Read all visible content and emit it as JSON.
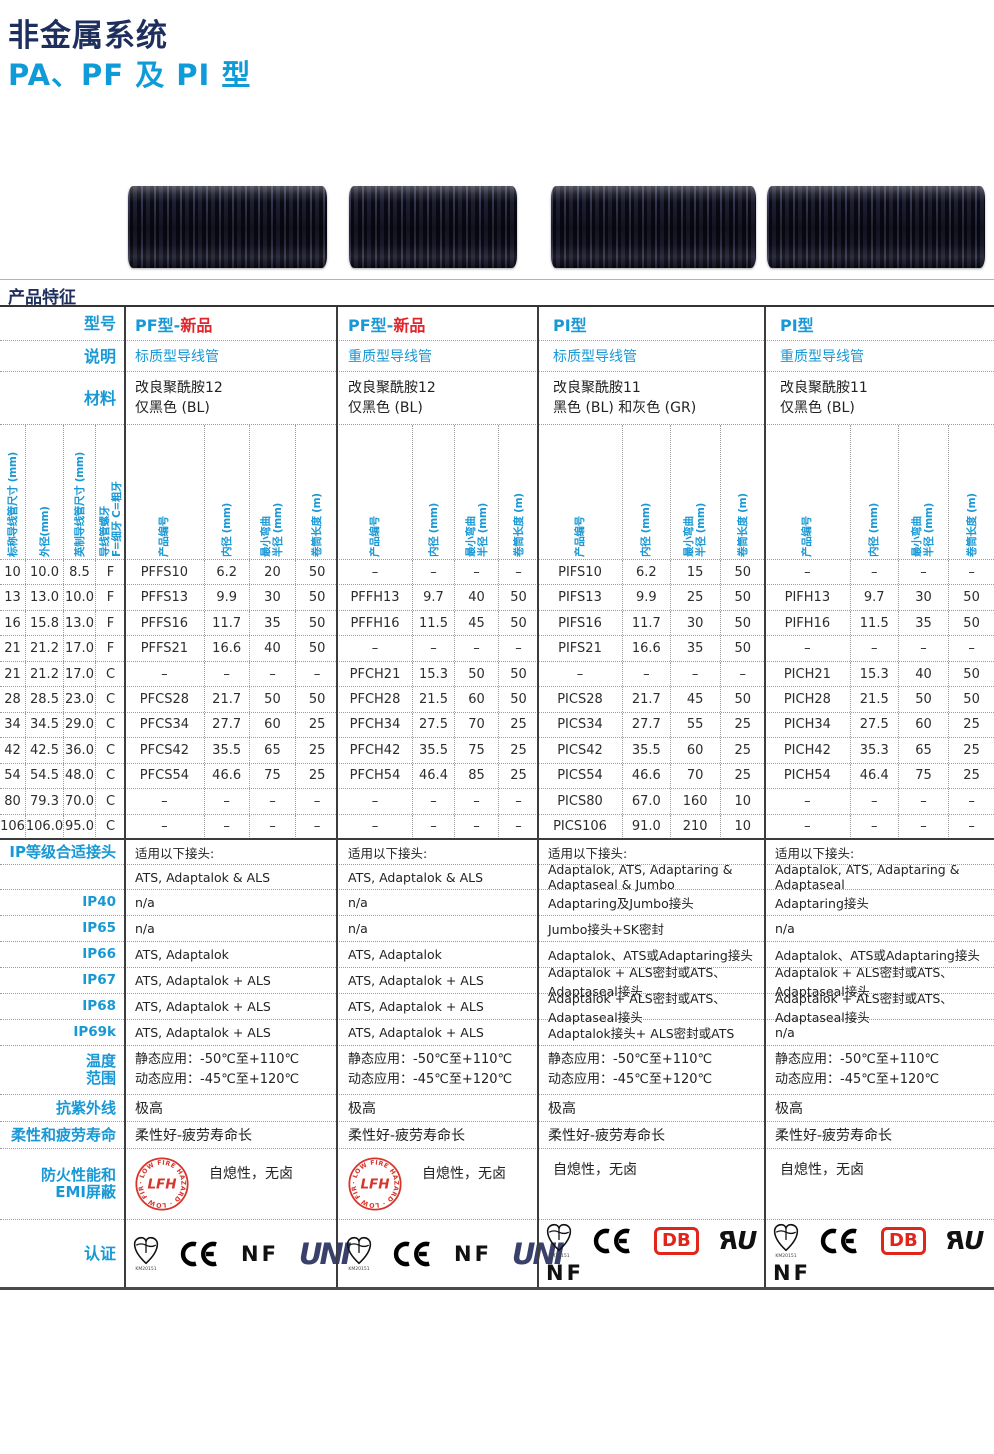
{
  "page": {
    "title": "非金属系统",
    "subtitle": "PA、PF 及 PI 型",
    "section_title": "产品特征"
  },
  "colors": {
    "title_navy": "#1e2f5e",
    "accent_blue": "#1898d5",
    "accent_red": "#e0262c",
    "lfh_red": "#d9342b",
    "uni_navy": "#39406b"
  },
  "cert_labels": {
    "kema_caption": "KM20151",
    "ce": "CE",
    "nf": "NF",
    "uni": "UNI",
    "db": "DB",
    "ul": "RU",
    "lfh": "LFH",
    "lfh_ring": "· LOW FIRE HAZARD · LOW FIRE HAZARD"
  },
  "table": {
    "row_labels": {
      "model": "型号",
      "desc": "说明",
      "material": "材料",
      "ip": "IP等级合适接头",
      "ip40": "IP40",
      "ip65": "IP65",
      "ip66": "IP66",
      "ip67": "IP67",
      "ip68": "IP68",
      "ip69k": "IP69k",
      "temp": "温度\n范围",
      "uv": "抗紫外线",
      "flex": "柔性和疲劳寿命",
      "fire": "防火性能和\nEMI屏蔽",
      "cert": "认证"
    },
    "col_headers": {
      "left": [
        "标称导线管尺寸 (mm)",
        "外径(mm)",
        "英制导线管尺寸 (mm)",
        "导线管螺牙\nF=细牙 C=粗牙"
      ],
      "group": [
        "产品编号",
        "内径 (mm)",
        "最小弯曲\n半径 (mm)",
        "卷筒长度 (m)"
      ]
    },
    "products": [
      {
        "model_prefix": "PF型-",
        "model_new": "新品",
        "desc": "标质型导线管",
        "material_1": "改良聚酰胺12",
        "material_2": "仅黑色 (BL)",
        "fit_head": "适用以下接头:",
        "fittings": "ATS, Adaptalok & ALS",
        "ip40": "n/a",
        "ip65": "n/a",
        "ip66": "ATS, Adaptalok",
        "ip67": "ATS, Adaptalok + ALS",
        "ip68": "ATS, Adaptalok + ALS",
        "ip69k": "ATS, Adaptalok + ALS",
        "temp_static": "静态应用：-50℃至+110℃",
        "temp_dynamic": "动态应用：-45℃至+120℃",
        "uv": "极高",
        "flex": "柔性好-疲劳寿命长",
        "fire": "自熄性，无卤",
        "fire_badge": true,
        "certs": [
          "kema",
          "ce",
          "nf",
          "uni"
        ],
        "certs_line2": []
      },
      {
        "model_prefix": "PF型-",
        "model_new": "新品",
        "desc": "重质型导线管",
        "material_1": "改良聚酰胺12",
        "material_2": "仅黑色 (BL)",
        "fit_head": "适用以下接头:",
        "fittings": "ATS, Adaptalok & ALS",
        "ip40": "n/a",
        "ip65": "n/a",
        "ip66": "ATS, Adaptalok",
        "ip67": "ATS, Adaptalok + ALS",
        "ip68": "ATS, Adaptalok + ALS",
        "ip69k": "ATS, Adaptalok + ALS",
        "temp_static": "静态应用：-50℃至+110℃",
        "temp_dynamic": "动态应用：-45℃至+120℃",
        "uv": "极高",
        "flex": "柔性好-疲劳寿命长",
        "fire": "自熄性，无卤",
        "fire_badge": true,
        "certs": [
          "kema",
          "ce",
          "nf",
          "uni"
        ],
        "certs_line2": []
      },
      {
        "model_prefix": "PI型",
        "model_new": "",
        "desc": "标质型导线管",
        "material_1": "改良聚酰胺11",
        "material_2": "黑色 (BL) 和灰色 (GR)",
        "fit_head": "适用以下接头:",
        "fittings": "Adaptalok, ATS, Adaptaring & Adaptaseal & Jumbo",
        "ip40": "Adaptaring及Jumbo接头",
        "ip65": "Jumbo接头+SK密封",
        "ip66": "Adaptalok、ATS或Adaptaring接头",
        "ip67": "Adaptalok + ALS密封或ATS、Adaptaseal接头",
        "ip68": "Adaptalok + ALS密封或ATS、Adaptaseal接头",
        "ip69k": "Adaptalok接头+ ALS密封或ATS",
        "temp_static": "静态应用：-50℃至+110℃",
        "temp_dynamic": "动态应用：-45℃至+120℃",
        "uv": "极高",
        "flex": "柔性好-疲劳寿命长",
        "fire": "自熄性，无卤",
        "fire_badge": false,
        "certs": [
          "kema",
          "ce",
          "db",
          "ul"
        ],
        "certs_line2": [
          "nf"
        ]
      },
      {
        "model_prefix": "PI型",
        "model_new": "",
        "desc": "重质型导线管",
        "material_1": "改良聚酰胺11",
        "material_2": "仅黑色 (BL)",
        "fit_head": "适用以下接头:",
        "fittings": "Adaptalok, ATS, Adaptaring & Adaptaseal",
        "ip40": "Adaptaring接头",
        "ip65": "n/a",
        "ip66": "Adaptalok、ATS或Adaptaring接头",
        "ip67": "Adaptalok + ALS密封或ATS、Adaptaseal接头",
        "ip68": "Adaptalok + ALS密封或ATS、Adaptaseal接头",
        "ip69k": "n/a",
        "temp_static": "静态应用：-50℃至+110℃",
        "temp_dynamic": "动态应用：-45℃至+120℃",
        "uv": "极高",
        "flex": "柔性好-疲劳寿命长",
        "fire": "自熄性，无卤",
        "fire_badge": false,
        "certs": [
          "kema",
          "ce",
          "db",
          "ul"
        ],
        "certs_line2": [
          "nf"
        ]
      }
    ],
    "rows": [
      {
        "size": [
          "10",
          "10.0",
          "8.5",
          "F"
        ],
        "groups": [
          [
            "PFFS10",
            "6.2",
            "20",
            "50"
          ],
          [
            "–",
            "–",
            "–",
            "–"
          ],
          [
            "PIFS10",
            "6.2",
            "15",
            "50"
          ],
          [
            "–",
            "–",
            "–",
            "–"
          ]
        ]
      },
      {
        "size": [
          "13",
          "13.0",
          "10.0",
          "F"
        ],
        "groups": [
          [
            "PFFS13",
            "9.9",
            "30",
            "50"
          ],
          [
            "PFFH13",
            "9.7",
            "40",
            "50"
          ],
          [
            "PIFS13",
            "9.9",
            "25",
            "50"
          ],
          [
            "PIFH13",
            "9.7",
            "30",
            "50"
          ]
        ]
      },
      {
        "size": [
          "16",
          "15.8",
          "13.0",
          "F"
        ],
        "groups": [
          [
            "PFFS16",
            "11.7",
            "35",
            "50"
          ],
          [
            "PFFH16",
            "11.5",
            "45",
            "50"
          ],
          [
            "PIFS16",
            "11.7",
            "30",
            "50"
          ],
          [
            "PIFH16",
            "11.5",
            "35",
            "50"
          ]
        ]
      },
      {
        "size": [
          "21",
          "21.2",
          "17.0",
          "F"
        ],
        "groups": [
          [
            "PFFS21",
            "16.6",
            "40",
            "50"
          ],
          [
            "–",
            "–",
            "–",
            "–"
          ],
          [
            "PIFS21",
            "16.6",
            "35",
            "50"
          ],
          [
            "–",
            "–",
            "–",
            "–"
          ]
        ]
      },
      {
        "size": [
          "21",
          "21.2",
          "17.0",
          "C"
        ],
        "groups": [
          [
            "–",
            "–",
            "–",
            "–"
          ],
          [
            "PFCH21",
            "15.3",
            "50",
            "50"
          ],
          [
            "–",
            "–",
            "–",
            "–"
          ],
          [
            "PICH21",
            "15.3",
            "40",
            "50"
          ]
        ]
      },
      {
        "size": [
          "28",
          "28.5",
          "23.0",
          "C"
        ],
        "groups": [
          [
            "PFCS28",
            "21.7",
            "50",
            "50"
          ],
          [
            "PFCH28",
            "21.5",
            "60",
            "50"
          ],
          [
            "PICS28",
            "21.7",
            "45",
            "50"
          ],
          [
            "PICH28",
            "21.5",
            "50",
            "50"
          ]
        ]
      },
      {
        "size": [
          "34",
          "34.5",
          "29.0",
          "C"
        ],
        "groups": [
          [
            "PFCS34",
            "27.7",
            "60",
            "25"
          ],
          [
            "PFCH34",
            "27.5",
            "70",
            "25"
          ],
          [
            "PICS34",
            "27.7",
            "55",
            "25"
          ],
          [
            "PICH34",
            "27.5",
            "60",
            "25"
          ]
        ]
      },
      {
        "size": [
          "42",
          "42.5",
          "36.0",
          "C"
        ],
        "groups": [
          [
            "PFCS42",
            "35.5",
            "65",
            "25"
          ],
          [
            "PFCH42",
            "35.5",
            "75",
            "25"
          ],
          [
            "PICS42",
            "35.5",
            "60",
            "25"
          ],
          [
            "PICH42",
            "35.3",
            "65",
            "25"
          ]
        ]
      },
      {
        "size": [
          "54",
          "54.5",
          "48.0",
          "C"
        ],
        "groups": [
          [
            "PFCS54",
            "46.6",
            "75",
            "25"
          ],
          [
            "PFCH54",
            "46.4",
            "85",
            "25"
          ],
          [
            "PICS54",
            "46.6",
            "70",
            "25"
          ],
          [
            "PICH54",
            "46.4",
            "75",
            "25"
          ]
        ]
      },
      {
        "size": [
          "80",
          "79.3",
          "70.0",
          "C"
        ],
        "groups": [
          [
            "–",
            "–",
            "–",
            "–"
          ],
          [
            "–",
            "–",
            "–",
            "–"
          ],
          [
            "PICS80",
            "67.0",
            "160",
            "10"
          ],
          [
            "–",
            "–",
            "–",
            "–"
          ]
        ]
      },
      {
        "size": [
          "106",
          "106.0",
          "95.0",
          "C"
        ],
        "groups": [
          [
            "–",
            "–",
            "–",
            "–"
          ],
          [
            "–",
            "–",
            "–",
            "–"
          ],
          [
            "PICS106",
            "91.0",
            "210",
            "10"
          ],
          [
            "–",
            "–",
            "–",
            "–"
          ]
        ]
      }
    ]
  }
}
